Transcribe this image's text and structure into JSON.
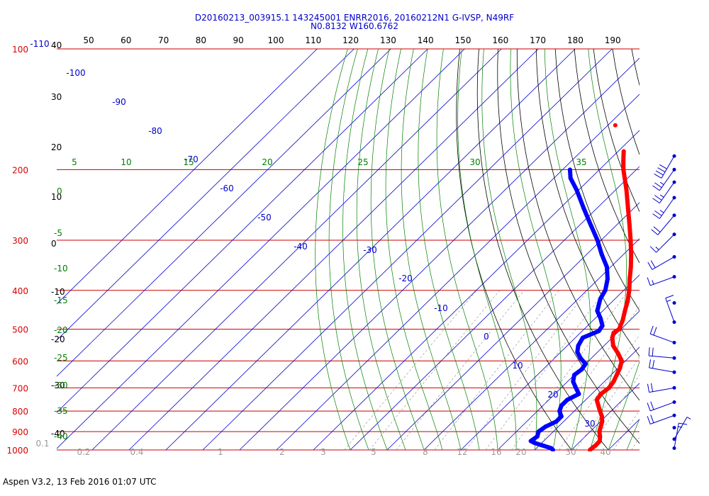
{
  "header": {
    "title_line1": "D20160213_003915.1 143245001 ENRR2016, 20160212N1 G-IVSP, N49RF",
    "title_line2": "N0.8132 W160.6762"
  },
  "footer": {
    "text": "Aspen V3.2, 13 Feb 2016  01:07 UTC"
  },
  "chart_data": {
    "type": "skew-t log-p sounding",
    "pressure_axis": {
      "unit": "hPa",
      "scale": "log",
      "range": [
        1000,
        100
      ],
      "tick_labels": [
        "100",
        "200",
        "300",
        "400",
        "500",
        "600",
        "700",
        "800",
        "900",
        "1000"
      ]
    },
    "height_labels_kft": [
      "40",
      "30",
      "20",
      "10",
      "0",
      "-10",
      "-20",
      "-30",
      "-40"
    ],
    "theta_labels_top": [
      "50",
      "60",
      "70",
      "80",
      "90",
      "100",
      "110",
      "120",
      "130",
      "140",
      "150",
      "160",
      "170",
      "180",
      "190"
    ],
    "temperature_labels": [
      "-110",
      "-100",
      "-90",
      "-80",
      "-70",
      "-60",
      "-50",
      "-40",
      "-30",
      "-20",
      "-10",
      "0",
      "10",
      "20",
      "30"
    ],
    "dry_adiabat_left_labels": [
      "0",
      "-5",
      "-10",
      "-15",
      "-20",
      "-25",
      "-30",
      "-35",
      "-40"
    ],
    "moist_adiabat_labels": [
      "5",
      "10",
      "15",
      "20",
      "25",
      "30",
      "35"
    ],
    "mixing_ratio_labels": [
      "0.1",
      "0.2",
      "0.4",
      "1",
      "2",
      "3",
      "5",
      "8",
      "12",
      "16",
      "20",
      "30",
      "40"
    ],
    "colors": {
      "temperature": "#ff0000",
      "dewpoint": "#0000ff",
      "isobar": "#cc0000",
      "isotherm": "#0000cc",
      "dry_adiabat": "#000000",
      "moist_adiabat": "#008000",
      "mixing_ratio": "#888888"
    },
    "series": [
      {
        "key": "temperature",
        "points": [
          [
            1000,
            25.0
          ],
          [
            975,
            25.3
          ],
          [
            950,
            25.2
          ],
          [
            925,
            24.0
          ],
          [
            900,
            22.5
          ],
          [
            875,
            21.5
          ],
          [
            850,
            20.5
          ],
          [
            825,
            19.0
          ],
          [
            800,
            17.0
          ],
          [
            775,
            15.0
          ],
          [
            750,
            13.0
          ],
          [
            725,
            12.5
          ],
          [
            700,
            13.0
          ],
          [
            675,
            12.5
          ],
          [
            650,
            11.5
          ],
          [
            625,
            10.5
          ],
          [
            600,
            9.0
          ],
          [
            575,
            6.0
          ],
          [
            550,
            2.5
          ],
          [
            525,
            0.0
          ],
          [
            510,
            -1.0
          ],
          [
            500,
            -0.5
          ],
          [
            475,
            -2.0
          ],
          [
            450,
            -4.0
          ],
          [
            425,
            -6.0
          ],
          [
            400,
            -8.5
          ],
          [
            375,
            -11.5
          ],
          [
            350,
            -14.5
          ],
          [
            325,
            -18.0
          ],
          [
            300,
            -22.0
          ],
          [
            275,
            -26.5
          ],
          [
            250,
            -31.5
          ],
          [
            225,
            -37.0
          ],
          [
            200,
            -43.5
          ],
          [
            190,
            -46.0
          ],
          [
            180,
            -48.5
          ]
        ],
        "isolated_points": [
          [
            155,
            -58.0
          ]
        ]
      },
      {
        "key": "dewpoint",
        "points": [
          [
            1000,
            15.0
          ],
          [
            990,
            14.0
          ],
          [
            975,
            11.0
          ],
          [
            960,
            8.0
          ],
          [
            950,
            6.5
          ],
          [
            925,
            7.0
          ],
          [
            900,
            6.0
          ],
          [
            875,
            6.5
          ],
          [
            850,
            8.0
          ],
          [
            825,
            8.0
          ],
          [
            800,
            6.0
          ],
          [
            775,
            5.0
          ],
          [
            750,
            5.0
          ],
          [
            725,
            6.5
          ],
          [
            700,
            4.0
          ],
          [
            675,
            1.5
          ],
          [
            650,
            0.0
          ],
          [
            630,
            0.5
          ],
          [
            610,
            0.0
          ],
          [
            590,
            -3.0
          ],
          [
            570,
            -5.5
          ],
          [
            550,
            -7.0
          ],
          [
            525,
            -8.0
          ],
          [
            505,
            -5.5
          ],
          [
            490,
            -6.0
          ],
          [
            470,
            -8.5
          ],
          [
            450,
            -11.5
          ],
          [
            420,
            -14.0
          ],
          [
            400,
            -15.0
          ],
          [
            375,
            -17.5
          ],
          [
            350,
            -21.0
          ],
          [
            325,
            -26.0
          ],
          [
            300,
            -31.0
          ],
          [
            275,
            -37.0
          ],
          [
            250,
            -43.5
          ],
          [
            225,
            -50.5
          ],
          [
            210,
            -55.5
          ],
          [
            200,
            -58.0
          ]
        ]
      }
    ],
    "wind_barbs": [
      {
        "p": 185,
        "dir": 210,
        "speed_kt": 40
      },
      {
        "p": 200,
        "dir": 215,
        "speed_kt": 25
      },
      {
        "p": 215,
        "dir": 215,
        "speed_kt": 25
      },
      {
        "p": 235,
        "dir": 215,
        "speed_kt": 25
      },
      {
        "p": 260,
        "dir": 220,
        "speed_kt": 20
      },
      {
        "p": 290,
        "dir": 225,
        "speed_kt": 15
      },
      {
        "p": 330,
        "dir": 240,
        "speed_kt": 20
      },
      {
        "p": 370,
        "dir": 250,
        "speed_kt": 15
      },
      {
        "p": 430,
        "dir": 0,
        "speed_kt": 0
      },
      {
        "p": 480,
        "dir": 340,
        "speed_kt": 15
      },
      {
        "p": 540,
        "dir": 290,
        "speed_kt": 20
      },
      {
        "p": 590,
        "dir": 275,
        "speed_kt": 20
      },
      {
        "p": 640,
        "dir": 280,
        "speed_kt": 20
      },
      {
        "p": 700,
        "dir": 260,
        "speed_kt": 20
      },
      {
        "p": 760,
        "dir": 250,
        "speed_kt": 20
      },
      {
        "p": 820,
        "dir": 250,
        "speed_kt": 20
      },
      {
        "p": 880,
        "dir": 0,
        "speed_kt": 0
      },
      {
        "p": 940,
        "dir": 30,
        "speed_kt": 5
      },
      {
        "p": 990,
        "dir": 10,
        "speed_kt": 15
      }
    ]
  }
}
